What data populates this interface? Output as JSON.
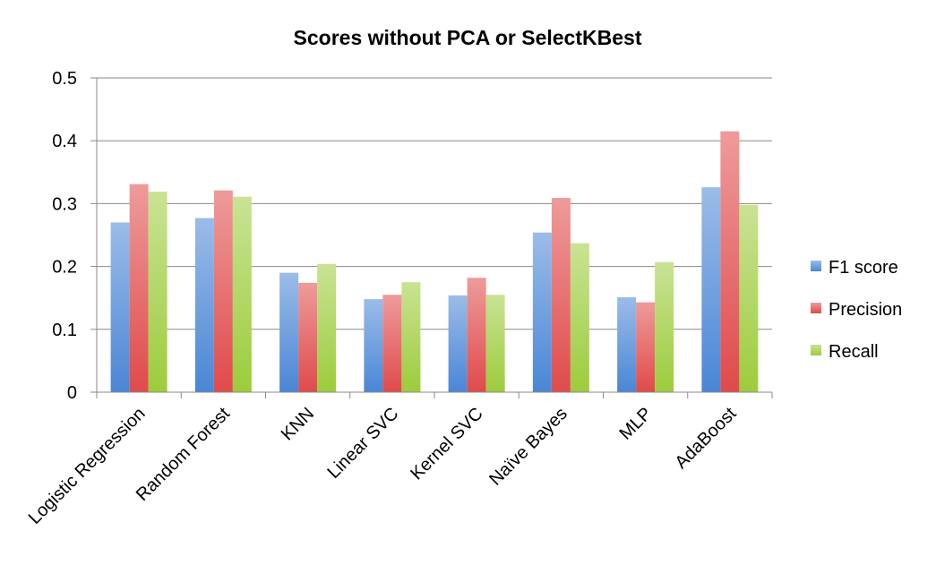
{
  "chart_data": {
    "type": "bar",
    "title": "Scores without PCA or SelectKBest",
    "xlabel": "",
    "ylabel": "",
    "ylim": [
      0,
      0.5
    ],
    "yticks": [
      "0",
      "0.1",
      "0.2",
      "0.3",
      "0.4",
      "0.5"
    ],
    "grid": true,
    "legend_position": "right",
    "categories": [
      "Logistic Regression",
      "Random Forest",
      "KNN",
      "Linear SVC",
      "Kernel SVC",
      "Naïve Bayes",
      "MLP",
      "AdaBoost"
    ],
    "series": [
      {
        "name": "F1 score",
        "color": "#4a86d6",
        "values": [
          0.27,
          0.277,
          0.19,
          0.148,
          0.154,
          0.254,
          0.151,
          0.326
        ]
      },
      {
        "name": "Precision",
        "color": "#e04a4a",
        "values": [
          0.331,
          0.321,
          0.174,
          0.155,
          0.182,
          0.309,
          0.143,
          0.415
        ]
      },
      {
        "name": "Recall",
        "color": "#9ccc3c",
        "values": [
          0.319,
          0.311,
          0.204,
          0.175,
          0.155,
          0.237,
          0.207,
          0.298
        ]
      }
    ]
  }
}
